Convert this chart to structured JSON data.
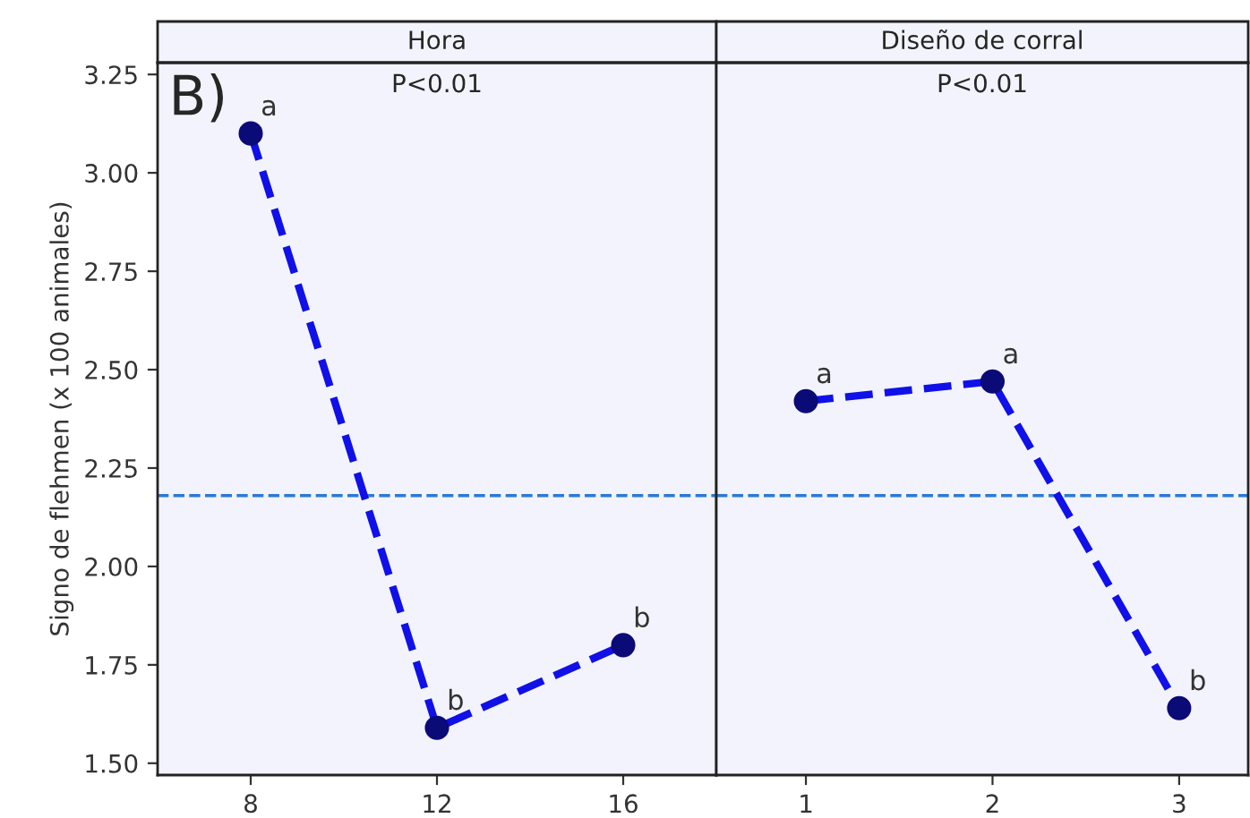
{
  "chart_data": [
    {
      "type": "line",
      "title": "Hora",
      "ylabel": "Signo de flehmen (x 100 animales)",
      "x": [
        8,
        12,
        16
      ],
      "series": [
        {
          "color": "#1010e8",
          "values": [
            3.1,
            1.59,
            1.8
          ]
        }
      ],
      "xlim": [
        6,
        18
      ],
      "xticks": [
        8,
        12,
        16
      ],
      "ylim": [
        1.47,
        3.28
      ],
      "yticks": [
        {
          "value": 1.5,
          "label": "1.50"
        },
        {
          "value": 1.75,
          "label": "1.75"
        },
        {
          "value": 2.0,
          "label": "2.00"
        },
        2.25,
        {
          "value": 2.5,
          "label": "2.50"
        },
        2.75,
        {
          "value": 3.0,
          "label": "3.00"
        },
        3.25
      ],
      "ref_lines": [
        {
          "axis": "y",
          "value": 2.18,
          "color": "#2a7ad8",
          "line_style": "dashed"
        }
      ],
      "marker": "circle",
      "line_style": "dashed",
      "grid": false,
      "annotations": [
        "B)",
        "P<0.01",
        {
          "text": "a",
          "x": 8,
          "y": 3.1
        },
        {
          "text": "b",
          "x": 12,
          "y": 1.59
        },
        {
          "text": "b",
          "x": 16,
          "y": 1.8
        }
      ]
    },
    {
      "type": "line",
      "title": "Diseño de corral",
      "x": [
        1,
        2,
        3
      ],
      "series": [
        {
          "color": "#1010e8",
          "values": [
            2.42,
            2.47,
            1.64
          ]
        }
      ],
      "xlim": [
        0.52,
        3.37
      ],
      "xticks": [
        1,
        2,
        3
      ],
      "ylim": [
        1.47,
        3.28
      ],
      "tick_labels": "x",
      "ref_lines": [
        {
          "axis": "y",
          "value": 2.18,
          "color": "#2a7ad8",
          "line_style": "dashed"
        }
      ],
      "marker": "circle",
      "line_style": "dashed",
      "grid": false,
      "annotations": [
        "P<0.01",
        {
          "text": "a",
          "x": 1,
          "y": 2.42
        },
        {
          "text": "a",
          "x": 2,
          "y": 2.47
        },
        {
          "text": "b",
          "x": 3,
          "y": 1.64
        }
      ]
    }
  ]
}
